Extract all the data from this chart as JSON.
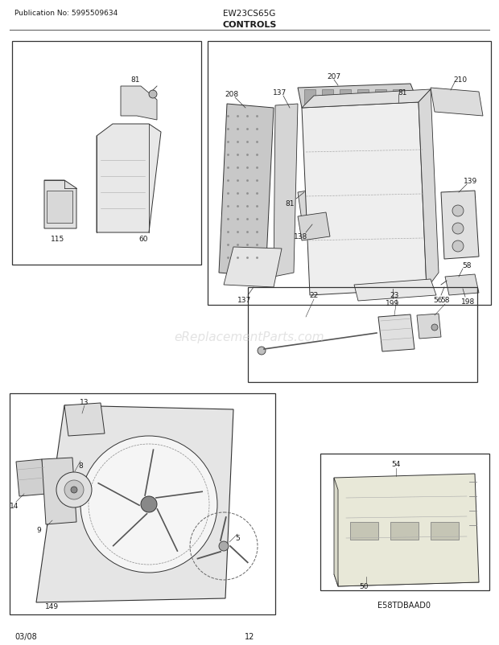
{
  "title_pub": "Publication No: 5995509634",
  "title_model": "EW23CS65G",
  "title_section": "CONTROLS",
  "footer_left": "03/08",
  "footer_center": "12",
  "watermark": "eReplacementParts.com",
  "footer_code": "E58TDBAAD0",
  "bg_color": "#ffffff",
  "text_color": "#1a1a1a",
  "line_color": "#333333",
  "light_gray": "#cccccc",
  "med_gray": "#999999",
  "dark_gray": "#555555"
}
